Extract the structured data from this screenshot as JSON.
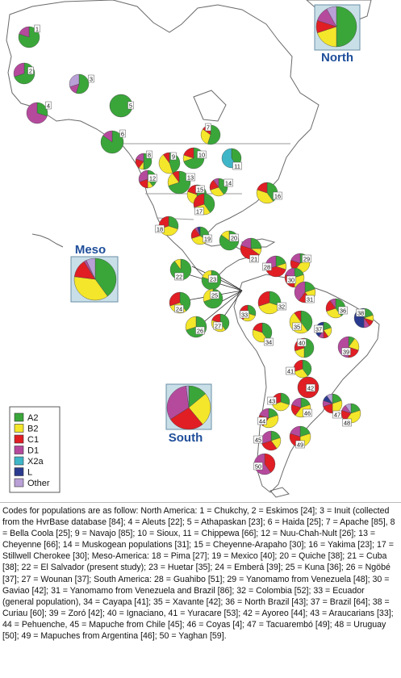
{
  "legend": {
    "items": [
      {
        "label": "A2",
        "color": "#3aa63a"
      },
      {
        "label": "B2",
        "color": "#f4e62a"
      },
      {
        "label": "C1",
        "color": "#e01e24"
      },
      {
        "label": "D1",
        "color": "#b54a9d"
      },
      {
        "label": "X2a",
        "color": "#3fb6c8"
      },
      {
        "label": "L",
        "color": "#2a3b8f"
      },
      {
        "label": "Other",
        "color": "#b9a0d6"
      }
    ]
  },
  "regions": [
    {
      "name": "North",
      "fractions": [
        0.5,
        0.2,
        0.1,
        0.12,
        0.0,
        0.0,
        0.08
      ]
    },
    {
      "name": "Meso",
      "fractions": [
        0.4,
        0.37,
        0.14,
        0.02,
        0.0,
        0.0,
        0.07
      ]
    },
    {
      "name": "South",
      "fractions": [
        0.14,
        0.25,
        0.27,
        0.32,
        0.0,
        0.0,
        0.02
      ]
    }
  ],
  "populations": [
    {
      "id": "1",
      "fractions": [
        0.8,
        0.0,
        0.0,
        0.2,
        0,
        0,
        0
      ]
    },
    {
      "id": "2",
      "fractions": [
        0.7,
        0.0,
        0.0,
        0.3,
        0,
        0,
        0
      ]
    },
    {
      "id": "3",
      "fractions": [
        0.55,
        0.0,
        0.0,
        0.15,
        0,
        0,
        0.3
      ]
    },
    {
      "id": "4",
      "fractions": [
        0.3,
        0.0,
        0.0,
        0.7,
        0,
        0,
        0
      ]
    },
    {
      "id": "5",
      "fractions": [
        1.0,
        0,
        0,
        0,
        0,
        0,
        0
      ]
    },
    {
      "id": "6",
      "fractions": [
        0.85,
        0.0,
        0.0,
        0.15,
        0,
        0,
        0
      ]
    },
    {
      "id": "7",
      "fractions": [
        0.55,
        0.3,
        0.15,
        0,
        0,
        0,
        0
      ]
    },
    {
      "id": "8",
      "fractions": [
        0.5,
        0.1,
        0.2,
        0.2,
        0,
        0,
        0
      ]
    },
    {
      "id": "9",
      "fractions": [
        0.45,
        0.45,
        0.1,
        0,
        0,
        0,
        0
      ]
    },
    {
      "id": "10",
      "fractions": [
        0.7,
        0.1,
        0.2,
        0,
        0,
        0,
        0
      ]
    },
    {
      "id": "11",
      "fractions": [
        0.4,
        0,
        0,
        0,
        0.6,
        0,
        0
      ]
    },
    {
      "id": "12",
      "fractions": [
        0.4,
        0.1,
        0.2,
        0.3,
        0,
        0,
        0
      ]
    },
    {
      "id": "13",
      "fractions": [
        0.7,
        0.2,
        0.1,
        0,
        0,
        0,
        0
      ]
    },
    {
      "id": "14",
      "fractions": [
        0.4,
        0.3,
        0.2,
        0.1,
        0,
        0,
        0
      ]
    },
    {
      "id": "15",
      "fractions": [
        0.5,
        0.3,
        0.2,
        0,
        0,
        0,
        0
      ]
    },
    {
      "id": "16",
      "fractions": [
        0.4,
        0.4,
        0.2,
        0,
        0,
        0,
        0
      ]
    },
    {
      "id": "17",
      "fractions": [
        0.4,
        0.3,
        0.3,
        0,
        0,
        0,
        0
      ]
    },
    {
      "id": "18",
      "fractions": [
        0.3,
        0.4,
        0.3,
        0,
        0,
        0,
        0
      ]
    },
    {
      "id": "19",
      "fractions": [
        0.35,
        0.35,
        0.2,
        0.05,
        0,
        0.05,
        0
      ]
    },
    {
      "id": "20",
      "fractions": [
        0.85,
        0.15,
        0,
        0,
        0,
        0,
        0
      ]
    },
    {
      "id": "21",
      "fractions": [
        0.25,
        0.1,
        0.45,
        0.2,
        0,
        0,
        0
      ]
    },
    {
      "id": "22",
      "fractions": [
        0.9,
        0.1,
        0,
        0,
        0,
        0,
        0
      ]
    },
    {
      "id": "23",
      "fractions": [
        0.8,
        0.2,
        0,
        0,
        0,
        0,
        0
      ]
    },
    {
      "id": "24",
      "fractions": [
        0.4,
        0.3,
        0.3,
        0,
        0,
        0,
        0
      ]
    },
    {
      "id": "25",
      "fractions": [
        0.7,
        0.3,
        0,
        0,
        0,
        0,
        0
      ]
    },
    {
      "id": "26",
      "fractions": [
        0.7,
        0.3,
        0,
        0,
        0,
        0,
        0
      ]
    },
    {
      "id": "27",
      "fractions": [
        0.4,
        0.4,
        0.2,
        0,
        0,
        0,
        0
      ]
    },
    {
      "id": "28",
      "fractions": [
        0.2,
        0.1,
        0.4,
        0.3,
        0,
        0,
        0
      ]
    },
    {
      "id": "29",
      "fractions": [
        0.2,
        0.4,
        0.2,
        0.2,
        0,
        0,
        0
      ]
    },
    {
      "id": "30",
      "fractions": [
        0.2,
        0.3,
        0.3,
        0.2,
        0,
        0,
        0
      ]
    },
    {
      "id": "31",
      "fractions": [
        0.2,
        0.2,
        0.2,
        0.4,
        0,
        0,
        0
      ]
    },
    {
      "id": "32",
      "fractions": [
        0.3,
        0.4,
        0.3,
        0,
        0,
        0,
        0
      ]
    },
    {
      "id": "33",
      "fractions": [
        0.3,
        0.3,
        0.4,
        0,
        0,
        0,
        0
      ]
    },
    {
      "id": "34",
      "fractions": [
        0.4,
        0.4,
        0.2,
        0,
        0,
        0,
        0
      ]
    },
    {
      "id": "35",
      "fractions": [
        0.4,
        0.5,
        0.1,
        0,
        0,
        0,
        0
      ]
    },
    {
      "id": "36",
      "fractions": [
        0.4,
        0.3,
        0.2,
        0.1,
        0,
        0,
        0
      ]
    },
    {
      "id": "37",
      "fractions": [
        0.2,
        0.2,
        0.1,
        0.1,
        0,
        0.4,
        0
      ]
    },
    {
      "id": "38",
      "fractions": [
        0.2,
        0.1,
        0.1,
        0.1,
        0,
        0.5,
        0
      ]
    },
    {
      "id": "39",
      "fractions": [
        0.1,
        0.2,
        0.2,
        0.5,
        0,
        0,
        0
      ]
    },
    {
      "id": "40",
      "fractions": [
        0.5,
        0.2,
        0.3,
        0,
        0,
        0,
        0
      ]
    },
    {
      "id": "41",
      "fractions": [
        0.4,
        0.3,
        0.3,
        0,
        0,
        0,
        0
      ]
    },
    {
      "id": "42",
      "fractions": [
        0,
        0,
        1.0,
        0,
        0,
        0,
        0
      ]
    },
    {
      "id": "43",
      "fractions": [
        0.3,
        0.4,
        0.3,
        0,
        0,
        0,
        0
      ]
    },
    {
      "id": "44",
      "fractions": [
        0.2,
        0.4,
        0.2,
        0.2,
        0,
        0,
        0
      ]
    },
    {
      "id": "45",
      "fractions": [
        0.2,
        0.2,
        0.3,
        0.3,
        0,
        0,
        0
      ]
    },
    {
      "id": "46",
      "fractions": [
        0.2,
        0.4,
        0.2,
        0.2,
        0,
        0,
        0
      ]
    },
    {
      "id": "47",
      "fractions": [
        0.2,
        0.3,
        0.2,
        0.1,
        0,
        0.1,
        0.1
      ]
    },
    {
      "id": "48",
      "fractions": [
        0.2,
        0.4,
        0.2,
        0.1,
        0,
        0,
        0.1
      ]
    },
    {
      "id": "49",
      "fractions": [
        0.2,
        0.3,
        0.3,
        0.2,
        0,
        0,
        0
      ]
    },
    {
      "id": "50",
      "fractions": [
        0,
        0,
        0.4,
        0.6,
        0,
        0,
        0
      ]
    }
  ],
  "caption": "Codes for populations are as follow: North America: 1 = Chukchy, 2 = Eskimos [24]; 3 = Inuit (collected from the HvrBase database [84]; 4 = Aleuts [22]; 5 = Athapaskan [23]; 6 = Haida [25]; 7 = Apache [85], 8 = Bella Coola [25]; 9 = Navajo [85]; 10 = Sioux, 11 = Chippewa [66]; 12 = Nuu-Chah-Nult [26]; 13 = Cheyenne [66]; 14 = Muskogean populations [31]; 15 = Cheyenne-Arapaho [30]; 16 = Yakima [23]; 17 = Stillwell Cherokee [30]; Meso-America: 18 = Pima [27]; 19 = Mexico [40]; 20 = Quiche [38]; 21 = Cuba [38]; 22 = El Salvador (present study); 23 = Huetar [35]; 24 = Emberá [39]; 25 = Kuna [36]; 26 = Ngöbé [37]; 27 = Wounan [37]; South America: 28 = Guahibo [51]; 29 = Yanomamo from Venezuela [48]; 30 = Gaviao [42]; 31 = Yanomamo from Venezuela and Brazil [86]; 32 = Colombia [52]; 33 = Ecuador (general population), 34 = Cayapa [41]; 35 = Xavante [42]; 36 = North Brazil [43]; 37 = Brazil [64]; 38 = Curiau [60]; 39 = Zoró [42]; 40 = Ignaciano, 41 = Yuracare [53]; 42 = Ayoreo [44]; 43 = Araucarians [33]; 44 = Pehuenche, 45 = Mapuche from Chile [45]; 46 = Coyas [4]; 47 = Tacuarembó [49]; 48 = Uruguay [50]; 49 = Mapuches from Argentina [46]; 50 = Yaghan [59]."
}
